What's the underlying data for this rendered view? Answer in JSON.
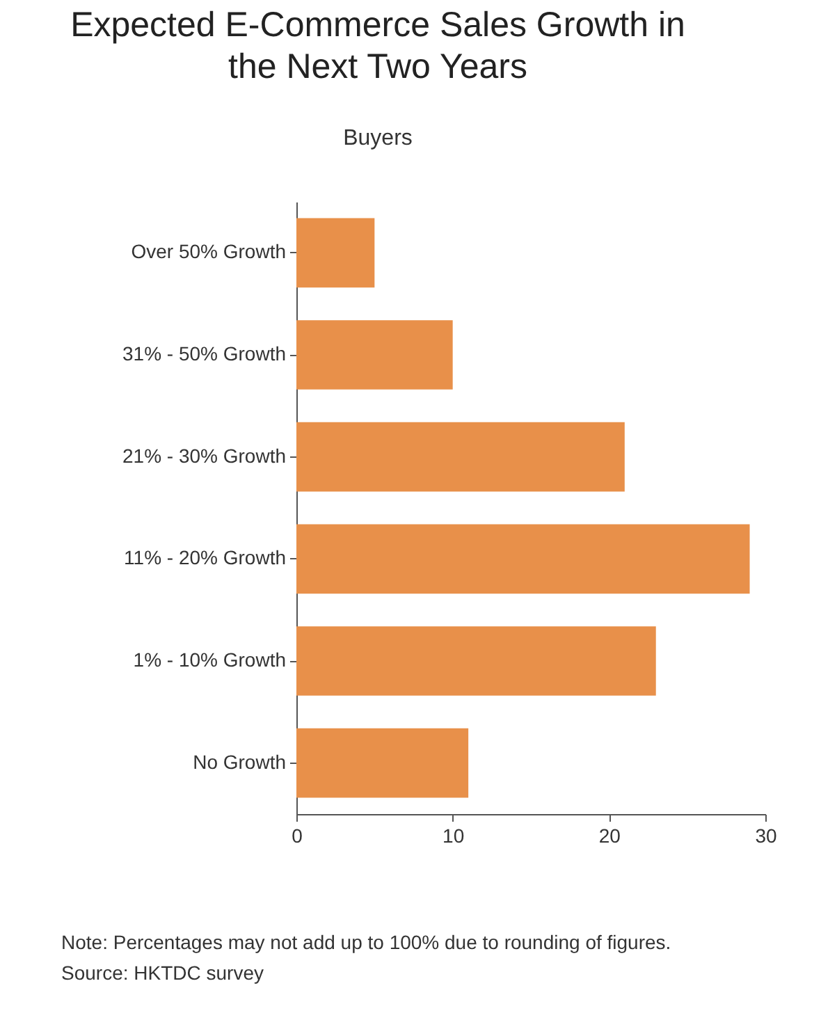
{
  "chart_data": {
    "type": "bar",
    "orientation": "horizontal",
    "title": "Expected E-Commerce Sales Growth in\nthe Next Two Years",
    "subtitle": "Buyers",
    "categories": [
      "Over 50% Growth",
      "31% - 50% Growth",
      "21% - 30% Growth",
      "11% - 20% Growth",
      "1% - 10% Growth",
      "No Growth"
    ],
    "values": [
      5,
      10,
      21,
      29,
      23,
      11
    ],
    "color": "#e8904a",
    "xlim": [
      0,
      30
    ],
    "xticks": [
      0,
      10,
      20,
      30
    ],
    "grid": false,
    "annotations": [
      "Note: Percentages may not add up to 100% due to rounding of figures.",
      "Source: HKTDC survey"
    ]
  }
}
